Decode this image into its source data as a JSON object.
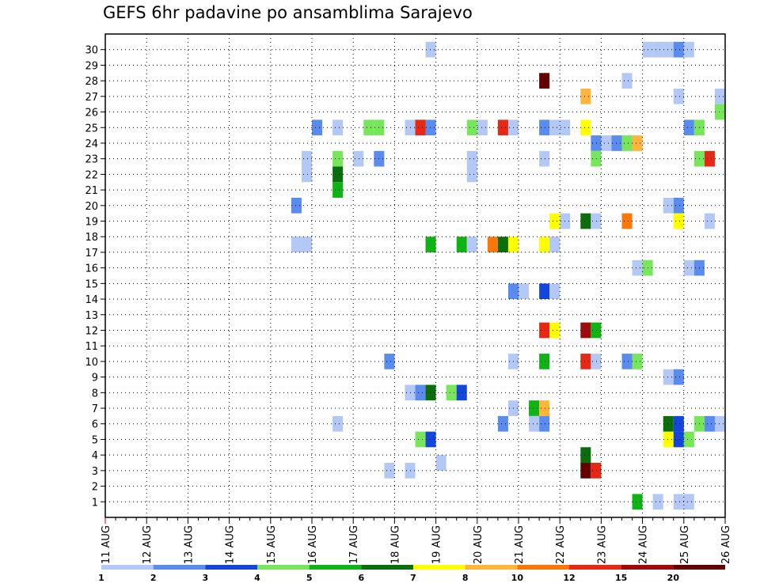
{
  "chart_data": {
    "type": "heatmap",
    "title": "GEFS 6hr padavine po ansamblima Sarajevo",
    "x_categories": [
      "11 AUG",
      "12 AUG",
      "13 AUG",
      "14 AUG",
      "15 AUG",
      "16 AUG",
      "17 AUG",
      "18 AUG",
      "19 AUG",
      "20 AUG",
      "21 AUG",
      "22 AUG",
      "23 AUG",
      "24 AUG",
      "25 AUG",
      "26 AUG"
    ],
    "y_categories": [
      "1",
      "2",
      "3",
      "4",
      "5",
      "6",
      "7",
      "8",
      "9",
      "10",
      "11",
      "12",
      "13",
      "14",
      "15",
      "16",
      "17",
      "18",
      "19",
      "20",
      "21",
      "22",
      "23",
      "24",
      "25",
      "26",
      "27",
      "28",
      "29",
      "30"
    ],
    "time_step_hours": 6,
    "grid": true,
    "legend": {
      "position": "bottom",
      "colors": [
        "#b4c8f5",
        "#5a8cf0",
        "#1446dc",
        "#78e65a",
        "#0fb414",
        "#0a6e0a",
        "#ffff00",
        "#ffb43c",
        "#fa780a",
        "#e62814",
        "#a00a0a",
        "#640000"
      ],
      "labels": [
        "1",
        "2",
        "3",
        "4",
        "5",
        "6",
        "7",
        "8",
        "10",
        "12",
        "15",
        "20"
      ]
    },
    "cells": [
      {
        "t": "18 AUG 18Z",
        "member": 30,
        "c": 1
      },
      {
        "t": "24 AUG 00Z",
        "member": 30,
        "c": 1
      },
      {
        "t": "24 AUG 06Z",
        "member": 30,
        "c": 1
      },
      {
        "t": "24 AUG 12Z",
        "member": 30,
        "c": 1
      },
      {
        "t": "24 AUG 18Z",
        "member": 30,
        "c": 2
      },
      {
        "t": "25 AUG 00Z",
        "member": 30,
        "c": 1
      },
      {
        "t": "21 AUG 12Z",
        "member": 28,
        "c": 12
      },
      {
        "t": "23 AUG 12Z",
        "member": 28,
        "c": 1
      },
      {
        "t": "22 AUG 12Z",
        "member": 27,
        "c": 8
      },
      {
        "t": "24 AUG 18Z",
        "member": 27,
        "c": 1
      },
      {
        "t": "25 AUG 18Z",
        "member": 27,
        "c": 1
      },
      {
        "t": "25 AUG 18Z",
        "member": 26,
        "c": 4
      },
      {
        "t": "16 AUG 00Z",
        "member": 25,
        "c": 2
      },
      {
        "t": "16 AUG 12Z",
        "member": 25,
        "c": 1
      },
      {
        "t": "17 AUG 06Z",
        "member": 25,
        "c": 4
      },
      {
        "t": "17 AUG 12Z",
        "member": 25,
        "c": 4
      },
      {
        "t": "18 AUG 06Z",
        "member": 25,
        "c": 1
      },
      {
        "t": "18 AUG 12Z",
        "member": 25,
        "c": 10
      },
      {
        "t": "18 AUG 18Z",
        "member": 25,
        "c": 2
      },
      {
        "t": "19 AUG 18Z",
        "member": 25,
        "c": 4
      },
      {
        "t": "20 AUG 00Z",
        "member": 25,
        "c": 1
      },
      {
        "t": "20 AUG 12Z",
        "member": 25,
        "c": 10
      },
      {
        "t": "20 AUG 18Z",
        "member": 25,
        "c": 1
      },
      {
        "t": "21 AUG 12Z",
        "member": 25,
        "c": 2
      },
      {
        "t": "21 AUG 18Z",
        "member": 25,
        "c": 1
      },
      {
        "t": "22 AUG 00Z",
        "member": 25,
        "c": 1
      },
      {
        "t": "22 AUG 12Z",
        "member": 25,
        "c": 7
      },
      {
        "t": "25 AUG 00Z",
        "member": 25,
        "c": 2
      },
      {
        "t": "25 AUG 06Z",
        "member": 25,
        "c": 4
      },
      {
        "t": "22 AUG 18Z",
        "member": 24,
        "c": 2
      },
      {
        "t": "23 AUG 00Z",
        "member": 24,
        "c": 1
      },
      {
        "t": "23 AUG 06Z",
        "member": 24,
        "c": 2
      },
      {
        "t": "23 AUG 12Z",
        "member": 24,
        "c": 4
      },
      {
        "t": "23 AUG 18Z",
        "member": 24,
        "c": 8
      },
      {
        "t": "15 AUG 18Z",
        "member": 23,
        "c": 1
      },
      {
        "t": "16 AUG 12Z",
        "member": 23,
        "c": 4
      },
      {
        "t": "17 AUG 00Z",
        "member": 23,
        "c": 1
      },
      {
        "t": "17 AUG 12Z",
        "member": 23,
        "c": 2
      },
      {
        "t": "19 AUG 18Z",
        "member": 23,
        "c": 1
      },
      {
        "t": "21 AUG 12Z",
        "member": 23,
        "c": 1
      },
      {
        "t": "22 AUG 18Z",
        "member": 23,
        "c": 4
      },
      {
        "t": "25 AUG 06Z",
        "member": 23,
        "c": 4
      },
      {
        "t": "25 AUG 12Z",
        "member": 23,
        "c": 10
      },
      {
        "t": "15 AUG 18Z",
        "member": 22,
        "c": 1
      },
      {
        "t": "16 AUG 12Z",
        "member": 22,
        "c": 6
      },
      {
        "t": "19 AUG 18Z",
        "member": 22,
        "c": 1
      },
      {
        "t": "16 AUG 12Z",
        "member": 21,
        "c": 5
      },
      {
        "t": "15 AUG 12Z",
        "member": 20,
        "c": 2
      },
      {
        "t": "24 AUG 12Z",
        "member": 20,
        "c": 1
      },
      {
        "t": "24 AUG 18Z",
        "member": 20,
        "c": 2
      },
      {
        "t": "21 AUG 18Z",
        "member": 19,
        "c": 7
      },
      {
        "t": "22 AUG 00Z",
        "member": 19,
        "c": 1
      },
      {
        "t": "22 AUG 12Z",
        "member": 19,
        "c": 6
      },
      {
        "t": "22 AUG 18Z",
        "member": 19,
        "c": 1
      },
      {
        "t": "23 AUG 12Z",
        "member": 19,
        "c": 9
      },
      {
        "t": "24 AUG 18Z",
        "member": 19,
        "c": 7
      },
      {
        "t": "25 AUG 12Z",
        "member": 19,
        "c": 1
      },
      {
        "t": "15 AUG 12Z",
        "member": 17.5,
        "c": 1
      },
      {
        "t": "15 AUG 18Z",
        "member": 17.5,
        "c": 1
      },
      {
        "t": "18 AUG 18Z",
        "member": 17.5,
        "c": 5
      },
      {
        "t": "19 AUG 12Z",
        "member": 17.5,
        "c": 5
      },
      {
        "t": "19 AUG 18Z",
        "member": 17.5,
        "c": 1
      },
      {
        "t": "20 AUG 06Z",
        "member": 17.5,
        "c": 9
      },
      {
        "t": "20 AUG 12Z",
        "member": 17.5,
        "c": 6
      },
      {
        "t": "20 AUG 18Z",
        "member": 17.5,
        "c": 7
      },
      {
        "t": "21 AUG 12Z",
        "member": 17.5,
        "c": 7
      },
      {
        "t": "21 AUG 18Z",
        "member": 17.5,
        "c": 1
      },
      {
        "t": "23 AUG 18Z",
        "member": 16,
        "c": 1
      },
      {
        "t": "24 AUG 00Z",
        "member": 16,
        "c": 4
      },
      {
        "t": "25 AUG 00Z",
        "member": 16,
        "c": 1
      },
      {
        "t": "25 AUG 06Z",
        "member": 16,
        "c": 2
      },
      {
        "t": "20 AUG 18Z",
        "member": 14.5,
        "c": 2
      },
      {
        "t": "21 AUG 00Z",
        "member": 14.5,
        "c": 1
      },
      {
        "t": "21 AUG 12Z",
        "member": 14.5,
        "c": 3
      },
      {
        "t": "21 AUG 18Z",
        "member": 14.5,
        "c": 1
      },
      {
        "t": "21 AUG 12Z",
        "member": 12,
        "c": 10
      },
      {
        "t": "21 AUG 18Z",
        "member": 12,
        "c": 7
      },
      {
        "t": "22 AUG 12Z",
        "member": 12,
        "c": 11
      },
      {
        "t": "22 AUG 18Z",
        "member": 12,
        "c": 5
      },
      {
        "t": "17 AUG 18Z",
        "member": 10,
        "c": 2
      },
      {
        "t": "20 AUG 18Z",
        "member": 10,
        "c": 1
      },
      {
        "t": "21 AUG 12Z",
        "member": 10,
        "c": 5
      },
      {
        "t": "22 AUG 12Z",
        "member": 10,
        "c": 10
      },
      {
        "t": "22 AUG 18Z",
        "member": 10,
        "c": 1
      },
      {
        "t": "23 AUG 12Z",
        "member": 10,
        "c": 2
      },
      {
        "t": "23 AUG 18Z",
        "member": 10,
        "c": 4
      },
      {
        "t": "24 AUG 12Z",
        "member": 9,
        "c": 1
      },
      {
        "t": "24 AUG 18Z",
        "member": 9,
        "c": 2
      },
      {
        "t": "18 AUG 06Z",
        "member": 8,
        "c": 1
      },
      {
        "t": "18 AUG 12Z",
        "member": 8,
        "c": 2
      },
      {
        "t": "18 AUG 18Z",
        "member": 8,
        "c": 6
      },
      {
        "t": "19 AUG 06Z",
        "member": 8,
        "c": 4
      },
      {
        "t": "19 AUG 12Z",
        "member": 8,
        "c": 3
      },
      {
        "t": "20 AUG 18Z",
        "member": 7,
        "c": 1
      },
      {
        "t": "21 AUG 06Z",
        "member": 7,
        "c": 5
      },
      {
        "t": "21 AUG 12Z",
        "member": 7,
        "c": 8
      },
      {
        "t": "16 AUG 12Z",
        "member": 6,
        "c": 1
      },
      {
        "t": "20 AUG 12Z",
        "member": 6,
        "c": 2
      },
      {
        "t": "21 AUG 06Z",
        "member": 6,
        "c": 1
      },
      {
        "t": "21 AUG 12Z",
        "member": 6,
        "c": 2
      },
      {
        "t": "24 AUG 12Z",
        "member": 6,
        "c": 6
      },
      {
        "t": "24 AUG 18Z",
        "member": 6,
        "c": 3
      },
      {
        "t": "25 AUG 06Z",
        "member": 6,
        "c": 4
      },
      {
        "t": "25 AUG 12Z",
        "member": 6,
        "c": 2
      },
      {
        "t": "25 AUG 18Z",
        "member": 6,
        "c": 1
      },
      {
        "t": "18 AUG 12Z",
        "member": 5,
        "c": 4
      },
      {
        "t": "18 AUG 18Z",
        "member": 5,
        "c": 3
      },
      {
        "t": "24 AUG 12Z",
        "member": 5,
        "c": 7
      },
      {
        "t": "24 AUG 18Z",
        "member": 5,
        "c": 3
      },
      {
        "t": "25 AUG 00Z",
        "member": 5,
        "c": 4
      },
      {
        "t": "19 AUG 00Z",
        "member": 3.5,
        "c": 1
      },
      {
        "t": "22 AUG 12Z",
        "member": 4,
        "c": 6
      },
      {
        "t": "17 AUG 18Z",
        "member": 3,
        "c": 1
      },
      {
        "t": "18 AUG 06Z",
        "member": 3,
        "c": 1
      },
      {
        "t": "22 AUG 12Z",
        "member": 3,
        "c": 12
      },
      {
        "t": "22 AUG 18Z",
        "member": 3,
        "c": 10
      },
      {
        "t": "23 AUG 18Z",
        "member": 1,
        "c": 5
      },
      {
        "t": "24 AUG 06Z",
        "member": 1,
        "c": 1
      },
      {
        "t": "24 AUG 18Z",
        "member": 1,
        "c": 1
      },
      {
        "t": "25 AUG 00Z",
        "member": 1,
        "c": 1
      }
    ]
  }
}
